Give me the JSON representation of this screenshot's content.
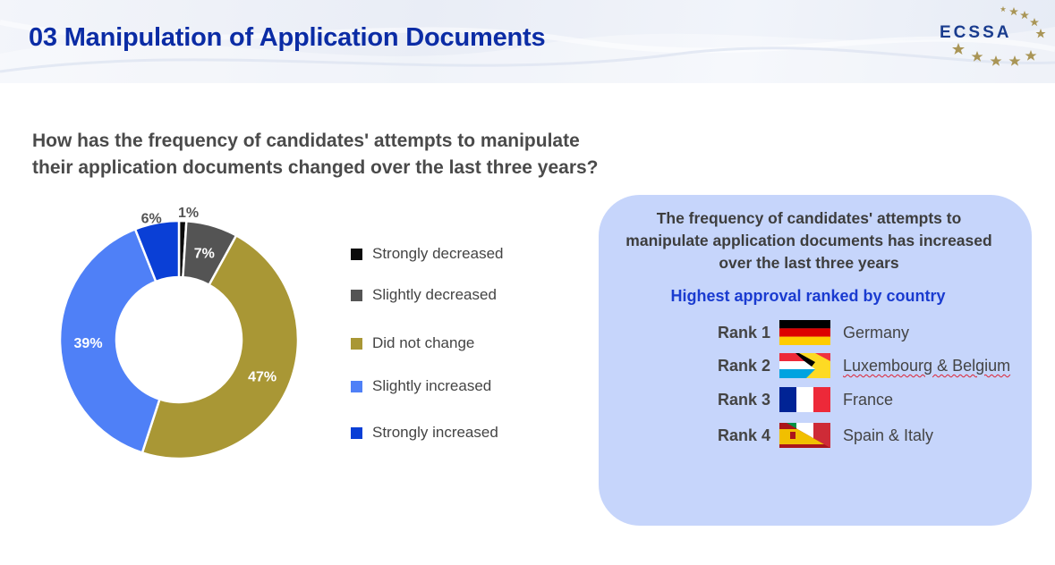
{
  "header": {
    "title": "03 Manipulation of Application Documents",
    "logo_text": "ECSSA",
    "logo_icon": "star-arc-icon"
  },
  "question": "How has the frequency of candidates' attempts to manipulate their application documents changed over the last three years?",
  "chart_data": {
    "type": "pie",
    "donut": true,
    "categories": [
      "Strongly decreased",
      "Slightly decreased",
      "Did not change",
      "Slightly increased",
      "Strongly increased"
    ],
    "values": [
      1,
      7,
      47,
      39,
      6
    ],
    "labels": [
      "1%",
      "7%",
      "47%",
      "39%",
      "6%"
    ],
    "colors": [
      "#0a0a0a",
      "#545454",
      "#a99735",
      "#4f80f7",
      "#0a3fd6"
    ],
    "legend_position": "right"
  },
  "panel": {
    "heading_lines": [
      "The frequency of candidates' attempts to",
      "manipulate application documents has increased",
      "over the last three years"
    ],
    "subheading": "Highest approval ranked by country",
    "ranks": [
      {
        "rank": "Rank 1",
        "country": "Germany",
        "flag": "germany-flag-icon"
      },
      {
        "rank": "Rank 2",
        "country": "Luxembourg & Belgium",
        "flag": "luxembourg-belgium-flag-icon"
      },
      {
        "rank": "Rank 3",
        "country": "France",
        "flag": "france-flag-icon"
      },
      {
        "rank": "Rank 4",
        "country": "Spain & Italy",
        "flag": "spain-italy-flag-icon"
      }
    ]
  }
}
